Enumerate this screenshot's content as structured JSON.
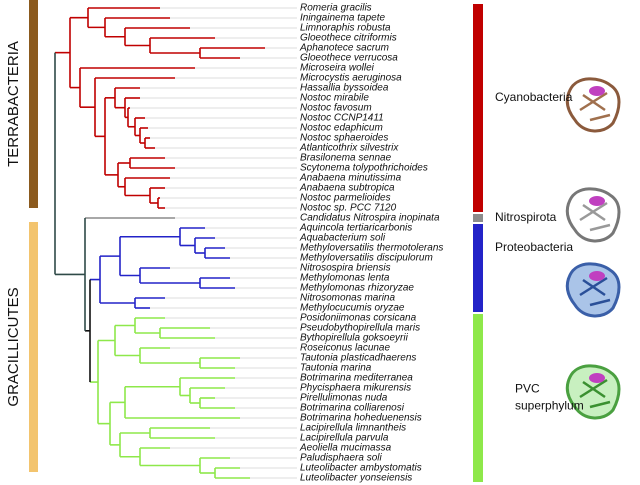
{
  "side_labels": [
    {
      "text": "TERRABACTERIA",
      "color": "#8b5a1e"
    },
    {
      "text": "GRACILLICUTES",
      "color": "#f3c46e"
    }
  ],
  "groups": [
    {
      "label": [
        "Cyanobacteria"
      ],
      "color": "#c00000",
      "taxa": [
        "Romeria gracilis",
        "Iningainema tapete",
        "Limnoraphis robusta",
        "Gloeothece citriformis",
        "Aphanotece sacrum",
        "Gloeothece verrucosa",
        "Microseira wollei",
        "Microcystis aeruginosa",
        "Hassallia byssoidea",
        "Nostoc mirabile",
        "Nostoc favosum",
        "Nostoc CCNP1411",
        "Nostoc edaphicum",
        "Nostoc sphaeroides",
        "Atlanticothrix silvestrix",
        "Brasilonema sennae",
        "Scytonema tolypothrichoides",
        "Anabaena minutissima",
        "Anabaena subtropica",
        "Nostoc parmelioides",
        "Nostoc sp. PCC 7120"
      ]
    },
    {
      "label": [
        "Nitrospirota"
      ],
      "color": "#8c8c8c",
      "taxa": [
        "Candidatus Nitrospira inopinata"
      ]
    },
    {
      "label": [
        "Proteobacteria"
      ],
      "color": "#2323c8",
      "taxa": [
        "Aquincola tertiaricarbonis",
        "Aquabacterium soli",
        "Methyloversatilis thermotolerans",
        "Methyloversatilis discipulorum",
        "Nitrosospira briensis",
        "Methylomonas lenta",
        "Methylomonas rhizoryzae",
        "Nitrosomonas marina",
        "Methylocucumis oryzae"
      ]
    },
    {
      "label": [
        "PVC",
        "superphylum"
      ],
      "color": "#8ee84a",
      "taxa": [
        "Posidoniimonas corsicana",
        "Pseudobythopirellula maris",
        "Bythopirellula goksoeyrii",
        "Roseiconus lacunae",
        "Tautonia plasticadhaerens",
        "Tautonia marina",
        "Botrimarina mediterranea",
        "Phycisphaera mikurensis",
        "Pirellulimonas nuda",
        "Botrimarina colliarenosi",
        "Botrimarina hoheduenensis",
        "Lacipirellula limnantheis",
        "Lacipirellula parvula",
        "Aeoliella mucimassa",
        "Paludisphaera soli",
        "Luteolibacter ambystomatis",
        "Luteolibacter yonseiensis"
      ]
    }
  ]
}
